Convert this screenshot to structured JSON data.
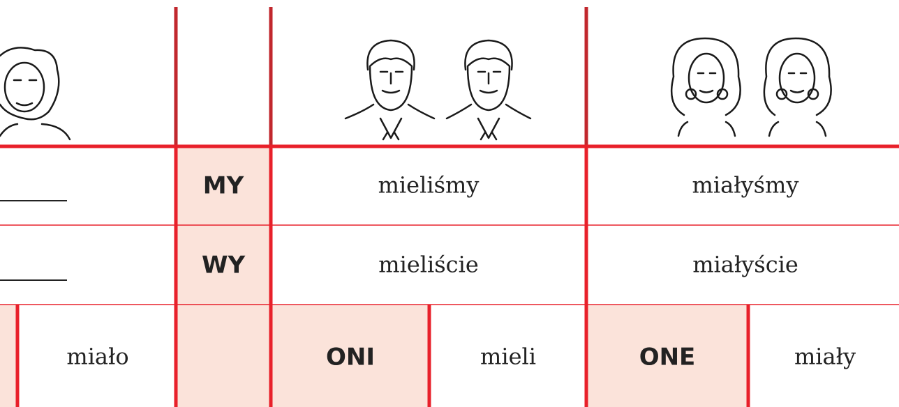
{
  "table": {
    "rows": [
      {
        "pronoun": "MY",
        "masculine": "mieliśmy",
        "feminine": "miałyśmy"
      },
      {
        "pronoun": "WY",
        "masculine": "mieliście",
        "feminine": "miałyście"
      },
      {
        "neuter_form": "miało",
        "masculine_pronoun": "ONI",
        "masculine_form": "mieli",
        "feminine_pronoun": "ONE",
        "feminine_form": "miały"
      }
    ]
  }
}
